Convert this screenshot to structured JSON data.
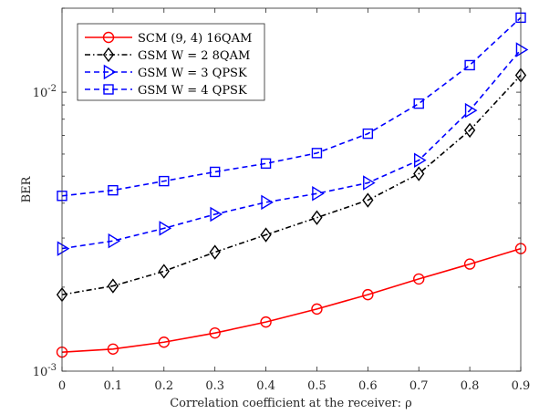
{
  "chart_data": {
    "type": "line",
    "xlabel": "Correlation coefficient at the receiver: ρ",
    "ylabel": "BER",
    "x": [
      0,
      0.1,
      0.2,
      0.3,
      0.4,
      0.5,
      0.6,
      0.7,
      0.8,
      0.9
    ],
    "xlim": [
      0,
      0.9
    ],
    "ylim": [
      0.001,
      0.02
    ],
    "yscale": "log",
    "x_ticks": [
      "0",
      "0.1",
      "0.2",
      "0.3",
      "0.4",
      "0.5",
      "0.6",
      "0.7",
      "0.8",
      "0.9"
    ],
    "y_ticks": [
      {
        "base": "10",
        "exp": "-3",
        "value": 0.001
      },
      {
        "base": "10",
        "exp": "-2",
        "value": 0.01
      }
    ],
    "grid": false,
    "legend_position": "top-left",
    "series": [
      {
        "name": "SCM (9, 4) 16QAM",
        "color": "#ff0000",
        "line_style": "solid",
        "marker": "circle",
        "values": [
          0.00117,
          0.0012,
          0.00127,
          0.00137,
          0.0015,
          0.00167,
          0.00188,
          0.00214,
          0.00242,
          0.00275
        ]
      },
      {
        "name": "GSM W = 2 8QAM",
        "color": "#000000",
        "line_style": "dash-dot",
        "marker": "diamond",
        "values": [
          0.00188,
          0.00202,
          0.00228,
          0.00267,
          0.00308,
          0.00355,
          0.0041,
          0.0051,
          0.0073,
          0.0115
        ]
      },
      {
        "name": "GSM W = 3 QPSK",
        "color": "#0000ff",
        "line_style": "dashed",
        "marker": "triangle-right",
        "values": [
          0.00275,
          0.00293,
          0.00325,
          0.00365,
          0.00403,
          0.00433,
          0.00473,
          0.0057,
          0.0086,
          0.0142
        ]
      },
      {
        "name": "GSM W = 4 QPSK",
        "color": "#0000ff",
        "line_style": "dashed",
        "marker": "square",
        "values": [
          0.00425,
          0.00445,
          0.0048,
          0.00518,
          0.00555,
          0.00605,
          0.0071,
          0.0091,
          0.0125,
          0.0185
        ]
      }
    ]
  }
}
